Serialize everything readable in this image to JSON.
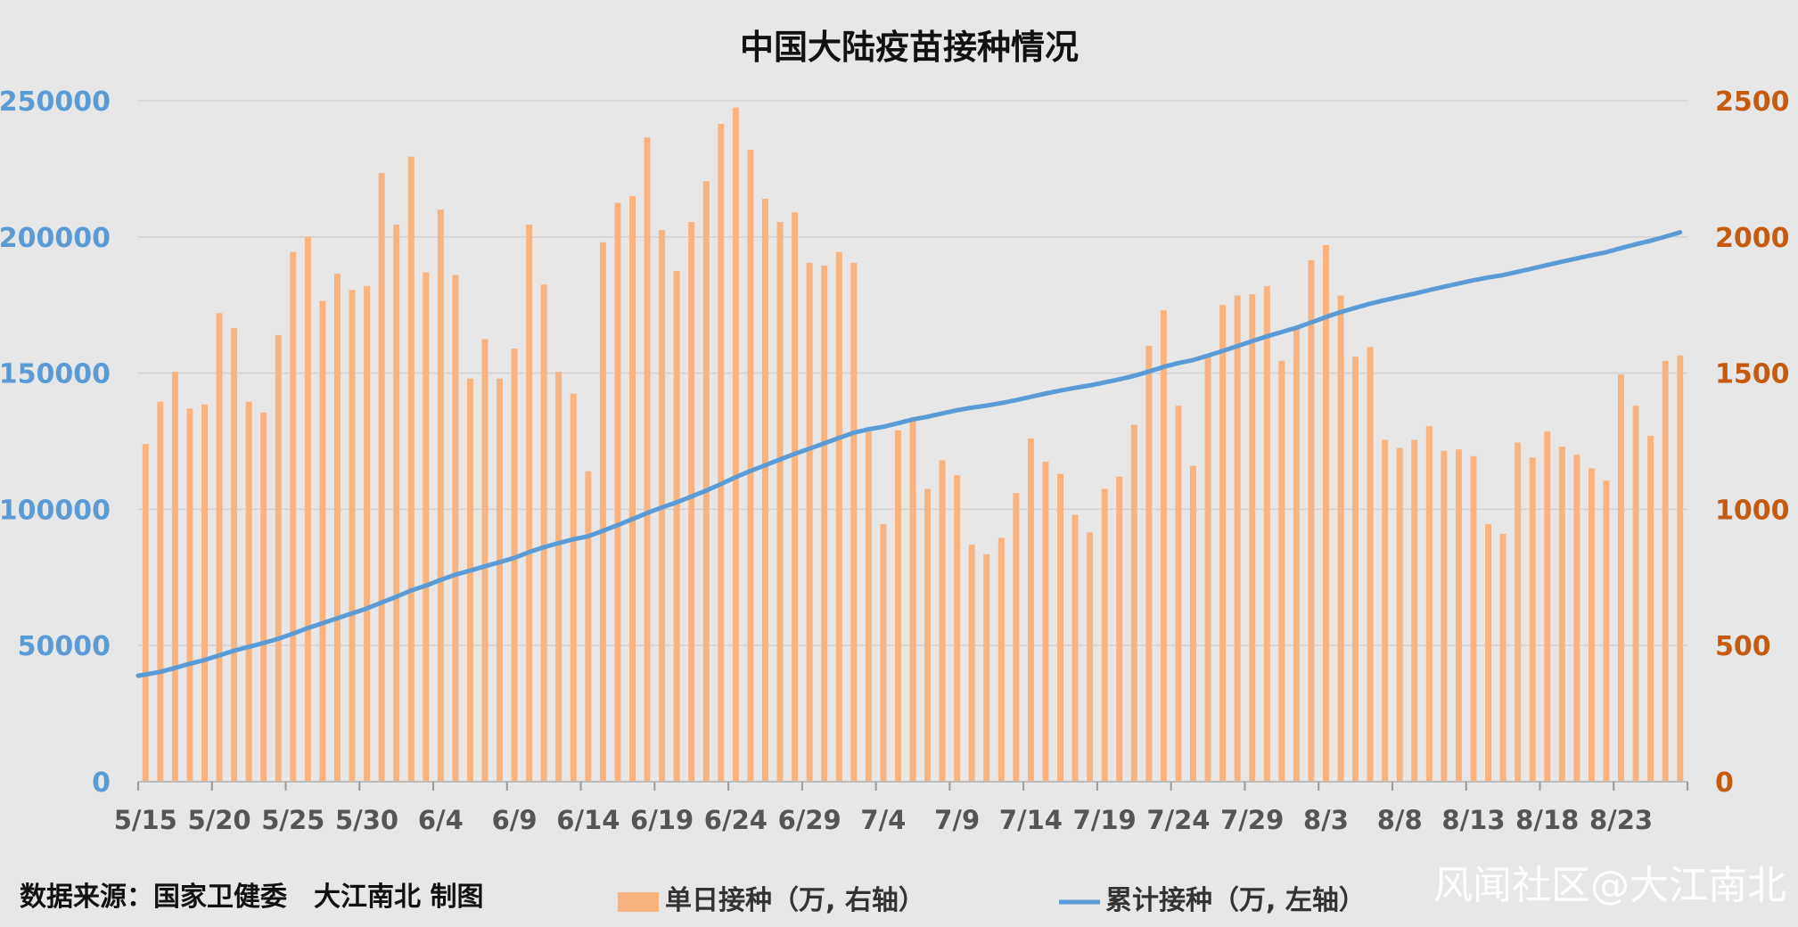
{
  "chart_data": {
    "type": "bar",
    "title": "中国大陆疫苗接种情况",
    "x": [
      "5/15",
      "5/16",
      "5/17",
      "5/18",
      "5/19",
      "5/20",
      "5/21",
      "5/22",
      "5/23",
      "5/24",
      "5/25",
      "5/26",
      "5/27",
      "5/28",
      "5/29",
      "5/30",
      "5/31",
      "6/1",
      "6/2",
      "6/3",
      "6/4",
      "6/5",
      "6/6",
      "6/7",
      "6/8",
      "6/9",
      "6/10",
      "6/11",
      "6/12",
      "6/13",
      "6/14",
      "6/15",
      "6/16",
      "6/17",
      "6/18",
      "6/19",
      "6/20",
      "6/21",
      "6/22",
      "6/23",
      "6/24",
      "6/25",
      "6/26",
      "6/27",
      "6/28",
      "6/29",
      "6/30",
      "7/1",
      "7/2",
      "7/3",
      "7/4",
      "7/5",
      "7/6",
      "7/7",
      "7/8",
      "7/9",
      "7/10",
      "7/11",
      "7/12",
      "7/13",
      "7/14",
      "7/15",
      "7/16",
      "7/17",
      "7/18",
      "7/19",
      "7/20",
      "7/21",
      "7/22",
      "7/23",
      "7/24",
      "7/25",
      "7/26",
      "7/27",
      "7/28",
      "7/29",
      "7/30",
      "7/31",
      "8/1",
      "8/2",
      "8/3",
      "8/4",
      "8/5",
      "8/6",
      "8/7",
      "8/8",
      "8/9",
      "8/10",
      "8/11",
      "8/12",
      "8/13",
      "8/14",
      "8/15",
      "8/16",
      "8/17",
      "8/18",
      "8/19",
      "8/20",
      "8/21",
      "8/22",
      "8/23",
      "8/24",
      "8/25",
      "8/26",
      "8/27"
    ],
    "x_tick_labels": [
      "5/15",
      "5/20",
      "5/25",
      "5/30",
      "6/4",
      "6/9",
      "6/14",
      "6/19",
      "6/24",
      "6/29",
      "7/4",
      "7/9",
      "7/14",
      "7/19",
      "7/24",
      "7/29",
      "8/3",
      "8/8",
      "8/13",
      "8/18",
      "8/23"
    ],
    "y_left": {
      "ylim": [
        0,
        250000
      ],
      "ticks": [
        "0",
        "50000",
        "100000",
        "150000",
        "200000",
        "250000"
      ]
    },
    "y_right": {
      "ylim": [
        0,
        2500
      ],
      "ticks": [
        "0",
        "500",
        "1000",
        "1500",
        "2000",
        "2500"
      ]
    },
    "series": [
      {
        "name": "单日接种（万, 右轴）",
        "type": "bar",
        "axis": "right",
        "color": "#f8b37f",
        "values": [
          1240,
          1395,
          1505,
          1370,
          1385,
          1720,
          1665,
          1395,
          1355,
          1640,
          1945,
          2000,
          1765,
          1865,
          1805,
          1820,
          2235,
          2045,
          2295,
          1870,
          2100,
          1860,
          1480,
          1625,
          1480,
          1590,
          2045,
          1825,
          1505,
          1425,
          1140,
          1980,
          2125,
          2150,
          2365,
          2025,
          1875,
          2055,
          2205,
          2415,
          2475,
          2320,
          2140,
          2055,
          2090,
          1905,
          1895,
          1945,
          1905,
          1285,
          945,
          1290,
          1335,
          1075,
          1180,
          1125,
          870,
          835,
          895,
          1060,
          1260,
          1175,
          1130,
          980,
          915,
          1075,
          1120,
          1310,
          1600,
          1730,
          1380,
          1160,
          1560,
          1750,
          1785,
          1790,
          1820,
          1545,
          1670,
          1915,
          1970,
          1785,
          1560,
          1595,
          1255,
          1225,
          1255,
          1305,
          1215,
          1220,
          1195,
          945,
          910,
          1245,
          1190,
          1285,
          1230,
          1200,
          1150,
          1105,
          1495,
          1380,
          1270,
          1545,
          1565
        ]
      },
      {
        "name": "累计接种（万, 左轴）",
        "type": "line",
        "axis": "left",
        "color": "#5b9bd5",
        "values": [
          38900,
          40300,
          41800,
          43300,
          44700,
          46400,
          48100,
          49500,
          50900,
          52500,
          54400,
          56400,
          58200,
          60000,
          61800,
          63600,
          65800,
          67900,
          70200,
          72000,
          74100,
          76000,
          77500,
          79100,
          80600,
          82200,
          84300,
          86100,
          87600,
          89000,
          90100,
          92100,
          94200,
          96400,
          98700,
          100700,
          102600,
          104700,
          106900,
          109300,
          111800,
          114100,
          116200,
          118300,
          120400,
          122300,
          124200,
          126200,
          128100,
          129400,
          130300,
          131600,
          133000,
          134000,
          135200,
          136400,
          137300,
          138100,
          139000,
          140100,
          141300,
          142500,
          143600,
          144600,
          145500,
          146600,
          147700,
          149000,
          150600,
          152300,
          153700,
          154800,
          156400,
          158100,
          159900,
          161700,
          163500,
          165100,
          166700,
          168600,
          170600,
          172400,
          174000,
          175500,
          176800,
          178000,
          179200,
          180500,
          181700,
          182900,
          184100,
          185100,
          186000,
          187200,
          188400,
          189700,
          190900,
          192100,
          193300,
          194400,
          195900,
          197300,
          198600,
          200100,
          201700
        ]
      }
    ],
    "legend_placement": "bottom",
    "grid": true
  },
  "footer": {
    "source": "数据来源：国家卫健委　大江南北 制图",
    "watermark": "风闻社区@大江南北"
  }
}
